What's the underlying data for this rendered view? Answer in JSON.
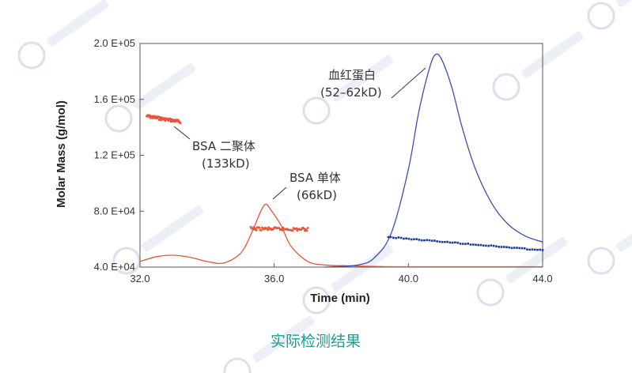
{
  "chart_data": {
    "type": "line",
    "xlabel": "Time (min)",
    "ylabel": "Molar Mass (g/mol)",
    "xlim": [
      32.0,
      44.0
    ],
    "ylim": [
      40000,
      200000
    ],
    "xticks": [
      32.0,
      36.0,
      40.0,
      44.0
    ],
    "xtick_labels": [
      "32.0",
      "36.0",
      "40.0",
      "44.0"
    ],
    "yticks": [
      40000,
      80000,
      120000,
      160000,
      200000
    ],
    "ytick_labels": [
      "4.0 E+04",
      "8.0 E+04",
      "1.2 E+05",
      "1.6 E+05",
      "2.0 E+05"
    ],
    "grid": false,
    "signal_traces": [
      {
        "color": "#e8553a",
        "x": [
          32.0,
          32.5,
          33.0,
          33.5,
          34.0,
          34.5,
          35.0,
          35.3,
          35.6,
          35.75,
          35.9,
          36.2,
          36.5,
          37.0,
          37.5,
          38.0,
          39.0,
          40.0,
          44.0
        ],
        "y": [
          44000,
          47500,
          48500,
          47000,
          44000,
          43000,
          50000,
          63000,
          80000,
          85000,
          81000,
          70000,
          55000,
          44000,
          41500,
          41000,
          40500,
          40300,
          40300
        ]
      },
      {
        "color": "#3b4fb0",
        "x": [
          37.5,
          38.5,
          39.0,
          39.5,
          40.0,
          40.3,
          40.6,
          40.8,
          41.0,
          41.3,
          41.6,
          42.0,
          42.5,
          43.0,
          43.5,
          44.0
        ],
        "y": [
          40000,
          41500,
          47000,
          65000,
          110000,
          150000,
          180000,
          192000,
          188000,
          168000,
          140000,
          110000,
          85000,
          70000,
          62000,
          58000
        ]
      }
    ],
    "molar_mass_points": [
      {
        "color": "#e8553a",
        "x_range": [
          32.2,
          33.2
        ],
        "y_start": 148000,
        "y_end": 144000
      },
      {
        "color": "#e8553a",
        "x_range": [
          35.3,
          37.0
        ],
        "y_start": 67500,
        "y_end": 67000
      },
      {
        "color": "#1a3a9c",
        "x_range": [
          39.4,
          44.0
        ],
        "y_start": 61500,
        "y_end": 52000
      }
    ],
    "annotations": [
      {
        "text": "BSA 二聚体",
        "subtext": "(133kD)"
      },
      {
        "text": "BSA 单体",
        "subtext": "(66kD)"
      },
      {
        "text": "血红蛋白",
        "subtext": "(52–62kD)"
      }
    ],
    "caption": "实际检测结果"
  }
}
